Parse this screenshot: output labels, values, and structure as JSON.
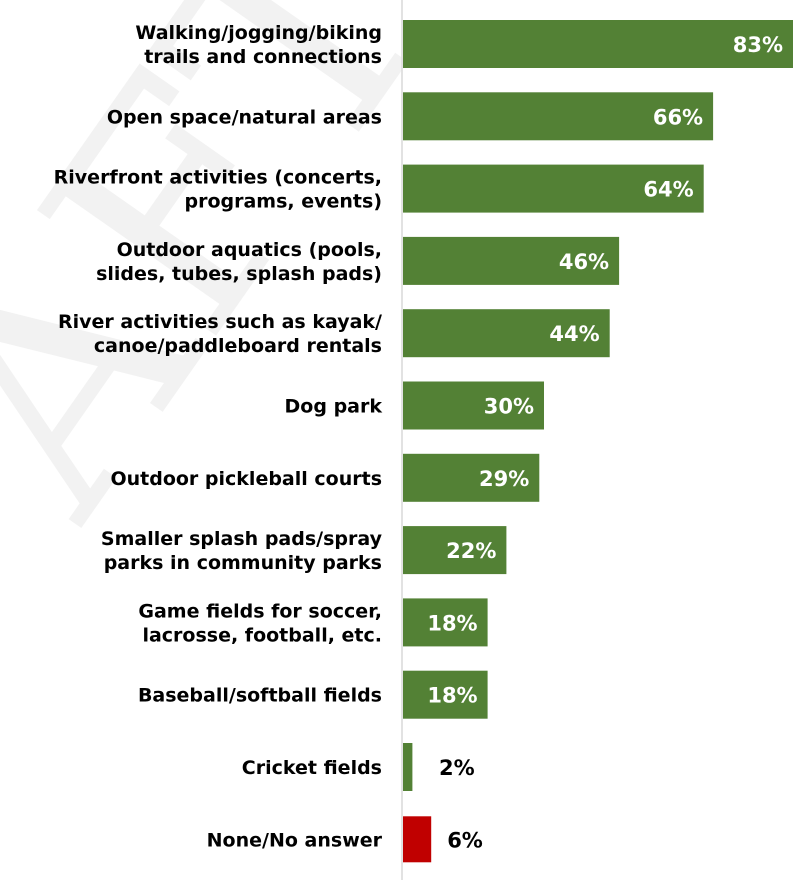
{
  "chart_data": {
    "type": "bar",
    "orientation": "horizontal",
    "categories": [
      [
        "Walking/jogging/biking",
        "trails and connections"
      ],
      [
        "Open space/natural areas"
      ],
      [
        "Riverfront activities (concerts,",
        "programs, events)"
      ],
      [
        "Outdoor aquatics (pools,",
        "slides, tubes, splash pads)"
      ],
      [
        "River activities such as kayak/",
        "canoe/paddleboard rentals"
      ],
      [
        "Dog park"
      ],
      [
        "Outdoor pickleball courts"
      ],
      [
        "Smaller splash pads/spray",
        "parks in community parks"
      ],
      [
        "Game fields for soccer,",
        "lacrosse, football, etc."
      ],
      [
        "Baseball/softball fields"
      ],
      [
        "Cricket fields"
      ],
      [
        "None/No answer"
      ]
    ],
    "values": [
      83,
      66,
      64,
      46,
      44,
      30,
      29,
      22,
      18,
      18,
      2,
      6
    ],
    "data_labels": [
      "83%",
      "66%",
      "64%",
      "46%",
      "44%",
      "30%",
      "29%",
      "22%",
      "18%",
      "18%",
      "2%",
      "6%"
    ],
    "colors": [
      "#538135",
      "#538135",
      "#538135",
      "#538135",
      "#538135",
      "#538135",
      "#538135",
      "#538135",
      "#538135",
      "#538135",
      "#538135",
      "#C00000"
    ],
    "xlim": [
      0,
      83
    ],
    "grid": false,
    "legend": "none",
    "title": "",
    "xlabel": "",
    "ylabel": ""
  },
  "watermark": {
    "text": "AFT"
  }
}
